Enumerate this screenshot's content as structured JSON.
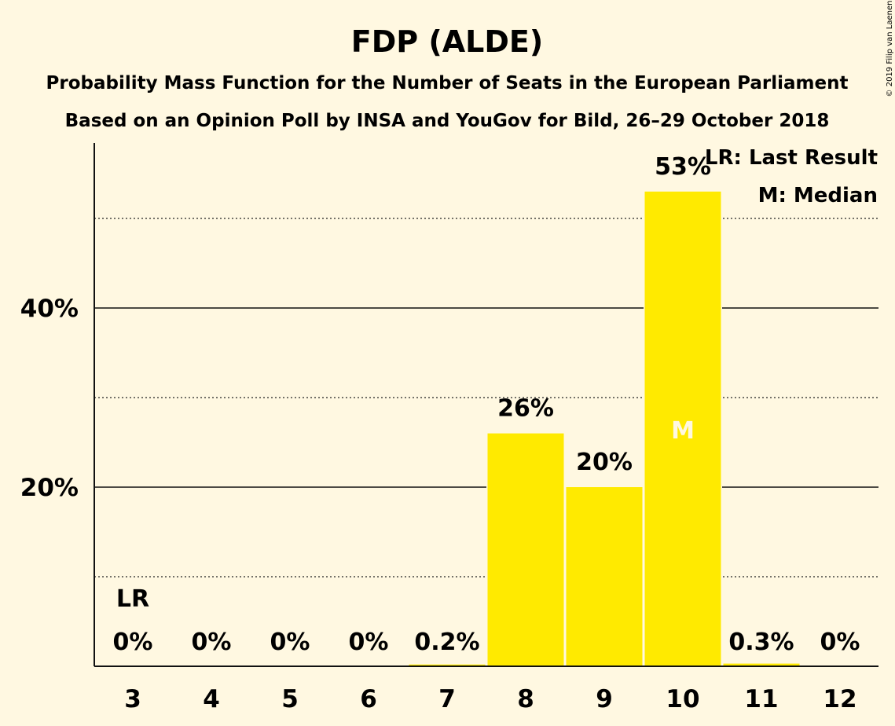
{
  "chart_data": {
    "type": "bar",
    "title": "FDP (ALDE)",
    "subtitle_lines": [
      "Probability Mass Function for the Number of Seats in the European Parliament",
      "Based on an Opinion Poll by INSA and YouGov for Bild, 26–29 October 2018"
    ],
    "copyright": "© 2019 Filip van Laenen",
    "categories": [
      "3",
      "4",
      "5",
      "6",
      "7",
      "8",
      "9",
      "10",
      "11",
      "12"
    ],
    "values": [
      0,
      0,
      0,
      0,
      0.2,
      26,
      20,
      53,
      0.3,
      0
    ],
    "value_labels": [
      "0%",
      "0%",
      "0%",
      "0%",
      "0.2%",
      "26%",
      "20%",
      "53%",
      "0.3%",
      "0%"
    ],
    "ylim": [
      0,
      58
    ],
    "y_ticks": [
      {
        "value": 20,
        "label": "20%"
      },
      {
        "value": 40,
        "label": "40%"
      }
    ],
    "dotted_gridlines": [
      10,
      30,
      50
    ],
    "last_result_category": "3",
    "last_result_mark": "LR",
    "median_category": "10",
    "median_mark": "M",
    "legend": [
      "LR: Last Result",
      "M: Median"
    ],
    "legend_position": "top-right",
    "bar_color": "#ffea00",
    "background_color": "#fff8e1",
    "median_text_color": "#fff8e1"
  }
}
